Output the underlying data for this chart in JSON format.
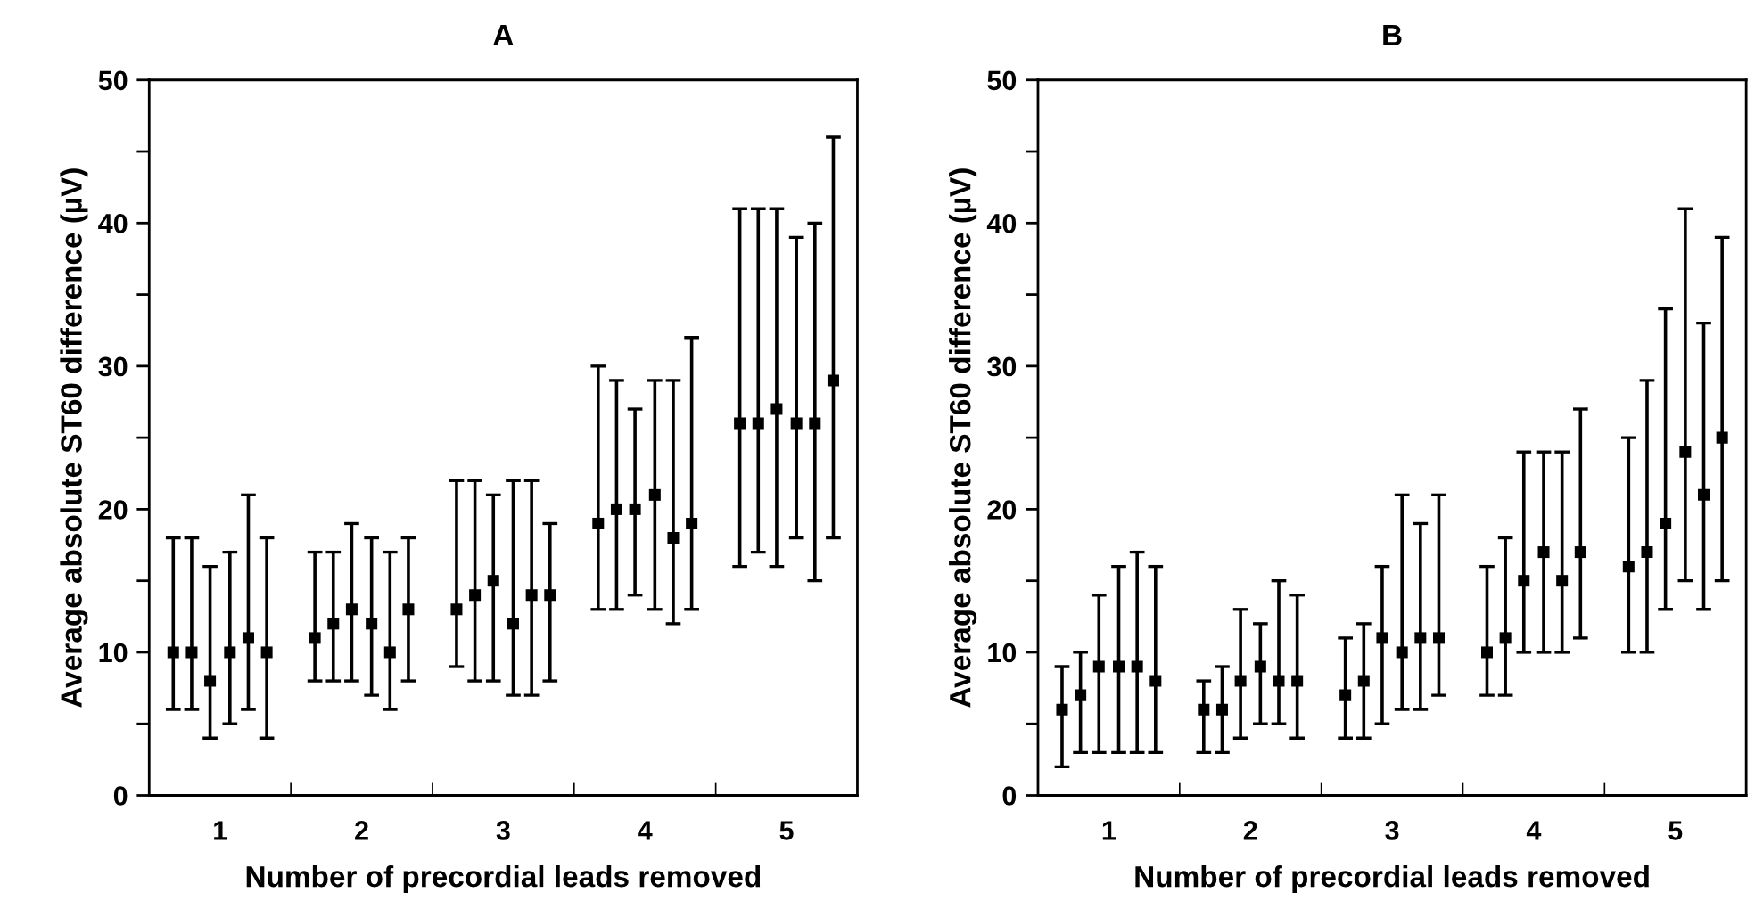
{
  "chart_data": [
    {
      "type": "scatter",
      "title": "A",
      "xlabel": "Number of precordial leads removed",
      "ylabel": "Average absolute ST60 difference (µV)",
      "marker": "square",
      "grid": false,
      "xlim": [
        0.5,
        5.5
      ],
      "xticks": [
        1,
        {
          "value": 1.5,
          "label": null
        },
        2,
        {
          "value": 2.5,
          "label": null
        },
        3,
        {
          "value": 3.5,
          "label": null
        },
        4,
        {
          "value": 4.5,
          "label": null
        },
        5
      ],
      "ylim": [
        0,
        50
      ],
      "yticks": [
        0,
        {
          "value": 5,
          "label": null
        },
        10,
        {
          "value": 15,
          "label": null
        },
        20,
        {
          "value": 25,
          "label": null
        },
        30,
        {
          "value": 35,
          "label": null
        },
        40,
        {
          "value": 45,
          "label": null
        },
        50
      ],
      "series": [
        {
          "color": "#000000",
          "x": [
            0.67,
            1.67,
            2.67,
            3.67,
            4.67
          ],
          "values": [
            10,
            11,
            13,
            19,
            26
          ],
          "errors": [
            [
              6,
              18
            ],
            [
              8,
              17
            ],
            [
              9,
              22
            ],
            [
              13,
              30
            ],
            [
              16,
              41
            ]
          ]
        },
        {
          "color": "#000000",
          "x": [
            0.8,
            1.8,
            2.8,
            3.8,
            4.8
          ],
          "values": [
            10,
            12,
            14,
            20,
            26
          ],
          "errors": [
            [
              6,
              18
            ],
            [
              8,
              17
            ],
            [
              8,
              22
            ],
            [
              13,
              29
            ],
            [
              17,
              41
            ]
          ]
        },
        {
          "color": "#000000",
          "x": [
            0.93,
            1.93,
            2.93,
            3.93,
            4.93
          ],
          "values": [
            8,
            13,
            15,
            20,
            27
          ],
          "errors": [
            [
              4,
              16
            ],
            [
              8,
              19
            ],
            [
              8,
              21
            ],
            [
              14,
              27
            ],
            [
              16,
              41
            ]
          ]
        },
        {
          "color": "#000000",
          "x": [
            1.07,
            2.07,
            3.07,
            4.07,
            5.07
          ],
          "values": [
            10,
            12,
            12,
            21,
            26
          ],
          "errors": [
            [
              5,
              17
            ],
            [
              7,
              18
            ],
            [
              7,
              22
            ],
            [
              13,
              29
            ],
            [
              18,
              39
            ]
          ]
        },
        {
          "color": "#000000",
          "x": [
            1.2,
            2.2,
            3.2,
            4.2,
            5.2
          ],
          "values": [
            11,
            10,
            14,
            18,
            26
          ],
          "errors": [
            [
              6,
              21
            ],
            [
              6,
              17
            ],
            [
              7,
              22
            ],
            [
              12,
              29
            ],
            [
              15,
              40
            ]
          ]
        },
        {
          "color": "#000000",
          "x": [
            1.33,
            2.33,
            3.33,
            4.33,
            5.33
          ],
          "values": [
            10,
            13,
            14,
            19,
            29
          ],
          "errors": [
            [
              4,
              18
            ],
            [
              8,
              18
            ],
            [
              8,
              19
            ],
            [
              13,
              32
            ],
            [
              18,
              46
            ]
          ]
        }
      ]
    },
    {
      "type": "scatter",
      "title": "B",
      "xlabel": "Number of precordial leads removed",
      "ylabel": "Average absolute ST60 difference (µV)",
      "marker": "square",
      "grid": false,
      "xlim": [
        0.5,
        5.5
      ],
      "xticks": [
        1,
        {
          "value": 1.5,
          "label": null
        },
        2,
        {
          "value": 2.5,
          "label": null
        },
        3,
        {
          "value": 3.5,
          "label": null
        },
        4,
        {
          "value": 4.5,
          "label": null
        },
        5
      ],
      "ylim": [
        0,
        50
      ],
      "yticks": [
        0,
        {
          "value": 5,
          "label": null
        },
        10,
        {
          "value": 15,
          "label": null
        },
        20,
        {
          "value": 25,
          "label": null
        },
        30,
        {
          "value": 35,
          "label": null
        },
        40,
        {
          "value": 45,
          "label": null
        },
        50
      ],
      "series": [
        {
          "color": "#000000",
          "x": [
            0.67,
            1.67,
            2.67,
            3.67,
            4.67
          ],
          "values": [
            6,
            6,
            7,
            10,
            16
          ],
          "errors": [
            [
              2,
              9
            ],
            [
              3,
              8
            ],
            [
              4,
              11
            ],
            [
              7,
              16
            ],
            [
              10,
              25
            ]
          ]
        },
        {
          "color": "#000000",
          "x": [
            0.8,
            1.8,
            2.8,
            3.8,
            4.8
          ],
          "values": [
            7,
            6,
            8,
            11,
            17
          ],
          "errors": [
            [
              3,
              10
            ],
            [
              3,
              9
            ],
            [
              4,
              12
            ],
            [
              7,
              18
            ],
            [
              10,
              29
            ]
          ]
        },
        {
          "color": "#000000",
          "x": [
            0.93,
            1.93,
            2.93,
            3.93,
            4.93
          ],
          "values": [
            9,
            8,
            11,
            15,
            19
          ],
          "errors": [
            [
              3,
              14
            ],
            [
              4,
              13
            ],
            [
              5,
              16
            ],
            [
              10,
              24
            ],
            [
              13,
              34
            ]
          ]
        },
        {
          "color": "#000000",
          "x": [
            1.07,
            2.07,
            3.07,
            4.07,
            5.07
          ],
          "values": [
            9,
            9,
            10,
            17,
            24
          ],
          "errors": [
            [
              3,
              16
            ],
            [
              5,
              12
            ],
            [
              6,
              21
            ],
            [
              10,
              24
            ],
            [
              15,
              41
            ]
          ]
        },
        {
          "color": "#000000",
          "x": [
            1.2,
            2.2,
            3.2,
            4.2,
            5.2
          ],
          "values": [
            9,
            8,
            11,
            15,
            21
          ],
          "errors": [
            [
              3,
              17
            ],
            [
              5,
              15
            ],
            [
              6,
              19
            ],
            [
              10,
              24
            ],
            [
              13,
              33
            ]
          ]
        },
        {
          "color": "#000000",
          "x": [
            1.33,
            2.33,
            3.33,
            4.33,
            5.33
          ],
          "values": [
            8,
            8,
            11,
            17,
            25
          ],
          "errors": [
            [
              3,
              16
            ],
            [
              4,
              14
            ],
            [
              7,
              21
            ],
            [
              11,
              27
            ],
            [
              15,
              39
            ]
          ]
        }
      ]
    }
  ]
}
